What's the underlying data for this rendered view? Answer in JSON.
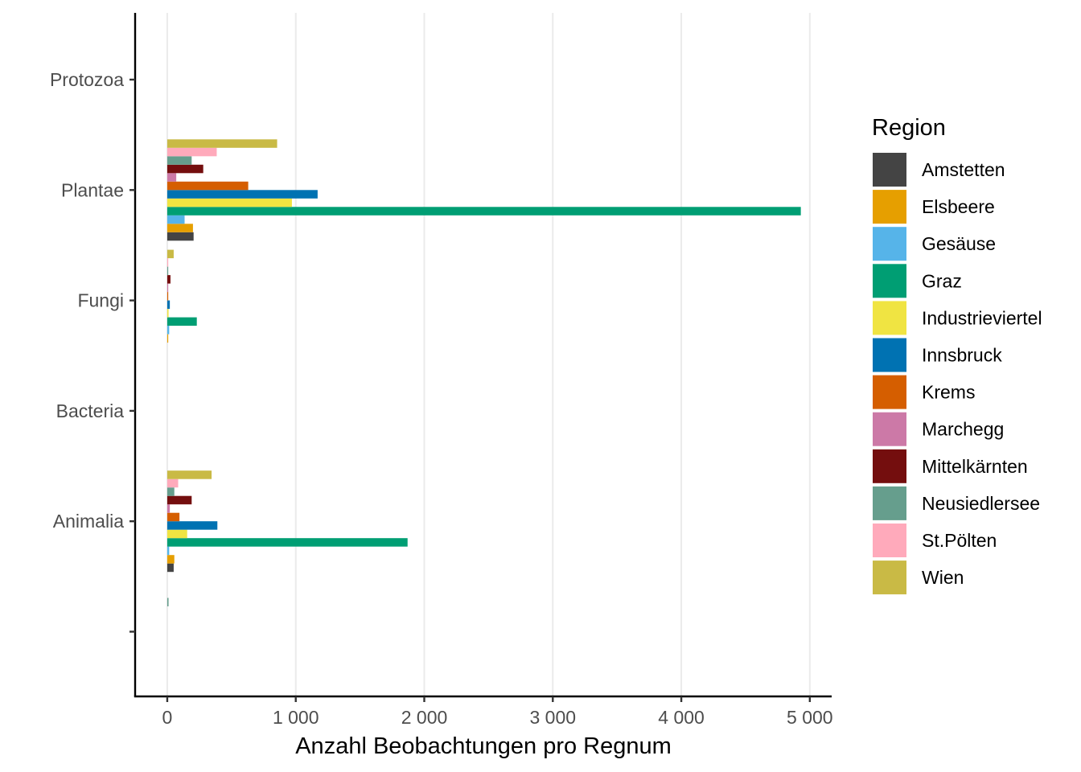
{
  "chart_data": {
    "type": "bar",
    "orientation": "horizontal",
    "xlabel": "Anzahl Beobachtungen pro Regnum",
    "ylabel": "",
    "xlim": [
      -250,
      5170
    ],
    "x_ticks": [
      0,
      1000,
      2000,
      3000,
      4000,
      5000
    ],
    "x_tick_labels": [
      "0",
      "1 000",
      "2 000",
      "3 000",
      "4 000",
      "5 000"
    ],
    "grid": "vertical major",
    "categories": [
      "",
      "Animalia",
      "Bacteria",
      "Fungi",
      "Plantae",
      "Protozoa"
    ],
    "legend": {
      "title": "Region",
      "position": "right"
    },
    "series": [
      {
        "name": "Amstetten",
        "color": "#444444",
        "values": [
          0,
          50,
          0,
          0,
          205,
          0
        ]
      },
      {
        "name": "Elsbeere",
        "color": "#E69F00",
        "values": [
          0,
          55,
          0,
          5,
          200,
          0
        ]
      },
      {
        "name": "Gesäuse",
        "color": "#56B4E9",
        "values": [
          0,
          15,
          0,
          15,
          135,
          0
        ]
      },
      {
        "name": "Graz",
        "color": "#009E73",
        "values": [
          0,
          1870,
          0,
          230,
          4930,
          0
        ]
      },
      {
        "name": "Industrieviertel",
        "color": "#F0E442",
        "values": [
          0,
          155,
          0,
          10,
          970,
          0
        ]
      },
      {
        "name": "Innsbruck",
        "color": "#0072B2",
        "values": [
          0,
          390,
          0,
          20,
          1170,
          0
        ]
      },
      {
        "name": "Krems",
        "color": "#D55E00",
        "values": [
          0,
          95,
          0,
          5,
          630,
          0
        ]
      },
      {
        "name": "Marchegg",
        "color": "#CC79A7",
        "values": [
          0,
          20,
          0,
          5,
          70,
          0
        ]
      },
      {
        "name": "Mittelkärnten",
        "color": "#740E0E",
        "values": [
          0,
          190,
          0,
          25,
          280,
          0
        ]
      },
      {
        "name": "Neusiedlersee",
        "color": "#669E8D",
        "values": [
          10,
          55,
          0,
          5,
          190,
          0
        ]
      },
      {
        "name": "St.Pölten",
        "color": "#FFAABB",
        "values": [
          0,
          85,
          0,
          5,
          385,
          0
        ]
      },
      {
        "name": "Wien",
        "color": "#C9BA45",
        "values": [
          0,
          345,
          0,
          50,
          855,
          0
        ]
      }
    ]
  }
}
